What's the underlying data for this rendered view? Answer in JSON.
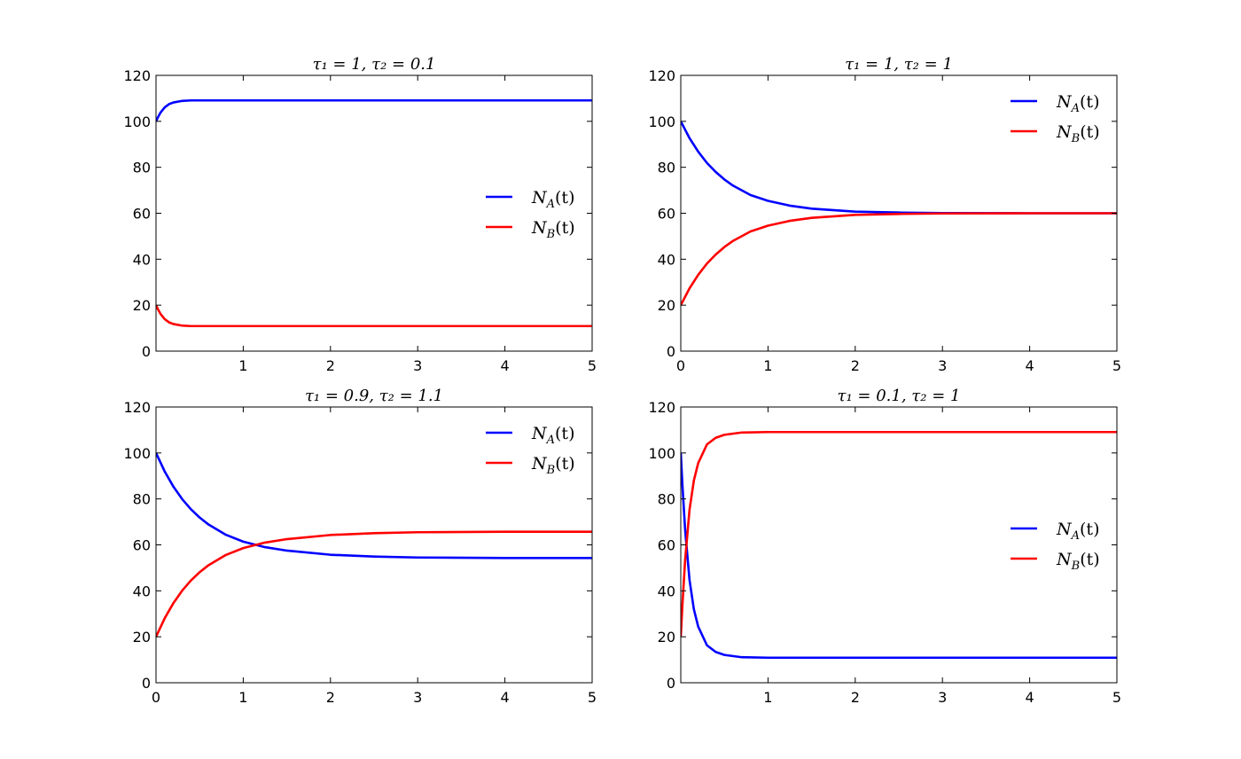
{
  "chart_data": [
    {
      "type": "line",
      "title": "τ₁ = 1, τ₂ = 0.1",
      "xlabel": "",
      "ylabel": "",
      "xlim": [
        0,
        5
      ],
      "ylim": [
        0,
        120
      ],
      "x_ticks": [
        "",
        "1",
        "2",
        "3",
        "4",
        "5"
      ],
      "y_ticks": [
        "0",
        "20",
        "40",
        "60",
        "80",
        "100",
        "120"
      ],
      "grid": false,
      "legend_position": "center-right",
      "x": [
        0,
        0.02,
        0.05,
        0.1,
        0.15,
        0.2,
        0.3,
        0.4,
        0.5,
        0.7,
        1,
        2,
        3,
        4,
        5
      ],
      "series": [
        {
          "name": "N_A(t)",
          "color": "#0000ff",
          "values": [
            100,
            101.6,
            103.7,
            106.1,
            107.5,
            108.2,
            108.9,
            109.1,
            109.1,
            109.1,
            109.1,
            109.1,
            109.1,
            109.1,
            109.1
          ]
        },
        {
          "name": "N_B(t)",
          "color": "#ff0000",
          "values": [
            20,
            18.4,
            16.3,
            13.9,
            12.5,
            11.8,
            11.1,
            10.9,
            10.9,
            10.9,
            10.9,
            10.9,
            10.9,
            10.9,
            10.9
          ]
        }
      ]
    },
    {
      "type": "line",
      "title": "τ₁ = 1, τ₂ = 1",
      "xlabel": "",
      "ylabel": "",
      "xlim": [
        0,
        5
      ],
      "ylim": [
        0,
        120
      ],
      "x_ticks": [
        "0",
        "1",
        "2",
        "3",
        "4",
        "5"
      ],
      "y_ticks": [
        "0",
        "20",
        "40",
        "60",
        "80",
        "100",
        "120"
      ],
      "grid": false,
      "legend_position": "top-right",
      "x": [
        0,
        0.1,
        0.2,
        0.3,
        0.4,
        0.5,
        0.6,
        0.8,
        1,
        1.25,
        1.5,
        2,
        2.5,
        3,
        4,
        5
      ],
      "series": [
        {
          "name": "N_A(t)",
          "color": "#0000ff",
          "values": [
            100,
            92.7,
            86.8,
            81.9,
            78.0,
            74.7,
            72.0,
            67.9,
            65.4,
            63.3,
            62.0,
            60.7,
            60.3,
            60.1,
            60.0,
            60.0
          ]
        },
        {
          "name": "N_B(t)",
          "color": "#ff0000",
          "values": [
            20,
            27.3,
            33.2,
            38.1,
            42.0,
            45.3,
            48.0,
            52.1,
            54.6,
            56.7,
            58.0,
            59.3,
            59.7,
            59.9,
            60.0,
            60.0
          ]
        }
      ]
    },
    {
      "type": "line",
      "title": "τ₁ = 0.9, τ₂ = 1.1",
      "xlabel": "",
      "ylabel": "",
      "xlim": [
        0,
        5
      ],
      "ylim": [
        0,
        120
      ],
      "x_ticks": [
        "0",
        "1",
        "2",
        "3",
        "4",
        "5"
      ],
      "y_ticks": [
        "0",
        "20",
        "40",
        "60",
        "80",
        "100",
        "120"
      ],
      "grid": false,
      "legend_position": "top-right",
      "x": [
        0,
        0.1,
        0.2,
        0.3,
        0.4,
        0.5,
        0.6,
        0.8,
        1,
        1.25,
        1.5,
        2,
        2.5,
        3,
        4,
        5
      ],
      "series": [
        {
          "name": "N_A(t)",
          "color": "#0000ff",
          "values": [
            100,
            91.9,
            85.3,
            79.9,
            75.5,
            71.9,
            68.9,
            64.4,
            61.4,
            59.0,
            57.5,
            55.7,
            54.9,
            54.5,
            54.3,
            54.3
          ]
        },
        {
          "name": "N_B(t)",
          "color": "#ff0000",
          "values": [
            20,
            28.1,
            34.7,
            40.1,
            44.5,
            48.1,
            51.1,
            55.6,
            58.6,
            61.0,
            62.5,
            64.3,
            65.1,
            65.5,
            65.7,
            65.7
          ]
        }
      ]
    },
    {
      "type": "line",
      "title": "τ₁ = 0.1, τ₂ = 1",
      "xlabel": "",
      "ylabel": "",
      "xlim": [
        0,
        5
      ],
      "ylim": [
        0,
        120
      ],
      "x_ticks": [
        "",
        "1",
        "2",
        "3",
        "4",
        "5"
      ],
      "y_ticks": [
        "0",
        "20",
        "40",
        "60",
        "80",
        "100",
        "120"
      ],
      "grid": false,
      "legend_position": "center-right",
      "x": [
        0,
        0.02,
        0.05,
        0.1,
        0.15,
        0.2,
        0.3,
        0.4,
        0.5,
        0.7,
        1,
        2,
        3,
        4,
        5
      ],
      "series": [
        {
          "name": "N_A(t)",
          "color": "#0000ff",
          "values": [
            100,
            85.3,
            66.5,
            44.8,
            32.0,
            24.4,
            16.3,
            13.4,
            12.1,
            11.1,
            10.9,
            10.9,
            10.9,
            10.9,
            10.9
          ]
        },
        {
          "name": "N_B(t)",
          "color": "#ff0000",
          "values": [
            20,
            34.7,
            53.5,
            75.2,
            88.0,
            95.6,
            103.7,
            106.6,
            107.9,
            108.9,
            109.1,
            109.1,
            109.1,
            109.1,
            109.1
          ]
        }
      ]
    }
  ]
}
